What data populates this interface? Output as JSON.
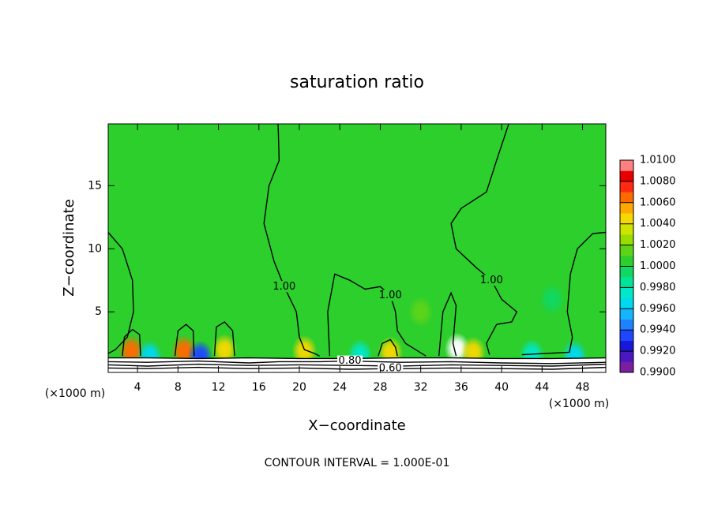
{
  "chart_data": {
    "type": "contour",
    "title": "saturation ratio",
    "x_label": "X−coordinate",
    "y_label": "Z−coordinate",
    "x_unit_label": "(×1000 m)",
    "footer": "CONTOUR INTERVAL = 1.000E-01",
    "xlim": [
      1.1,
      50.3
    ],
    "ylim": [
      0.2,
      19.9
    ],
    "xticks": [
      4,
      8,
      12,
      16,
      20,
      24,
      28,
      32,
      36,
      40,
      44,
      48
    ],
    "yticks": [
      5,
      10,
      15
    ],
    "background_value": 1.0004,
    "colorbar": {
      "range": [
        0.99,
        1.01
      ],
      "colors": [
        "#7b1fa2",
        "#4a18c0",
        "#1818d8",
        "#1e46ff",
        "#1e82ff",
        "#14b4ff",
        "#00d8f0",
        "#00e8c8",
        "#00e49a",
        "#10d860",
        "#2ccf2c",
        "#5cd41a",
        "#98dc00",
        "#cce400",
        "#f4d800",
        "#ffa800",
        "#ff6a00",
        "#ff2a10",
        "#e80000",
        "#ff8080"
      ],
      "ticks": [
        {
          "value": 0.99,
          "label": "0.9900"
        },
        {
          "value": 0.992,
          "label": "0.9920"
        },
        {
          "value": 0.994,
          "label": "0.9940"
        },
        {
          "value": 0.996,
          "label": "0.9960"
        },
        {
          "value": 0.998,
          "label": "0.9980"
        },
        {
          "value": 1.0,
          "label": "1.0000"
        },
        {
          "value": 1.002,
          "label": "1.0020"
        },
        {
          "value": 1.004,
          "label": "1.0040"
        },
        {
          "value": 1.006,
          "label": "1.0060"
        },
        {
          "value": 1.008,
          "label": "1.0080"
        },
        {
          "value": 1.01,
          "label": "1.0100"
        }
      ]
    },
    "features": [
      {
        "x": 2.3,
        "y": 6,
        "value": 1.001
      },
      {
        "x": 32,
        "y": 5,
        "value": 1.0015
      },
      {
        "x": 45,
        "y": 6,
        "value": 0.999
      },
      {
        "x": 3.4,
        "y": 1.9,
        "value": 1.006
      },
      {
        "x": 8.6,
        "y": 1.9,
        "value": 1.006
      },
      {
        "x": 12.6,
        "y": 2,
        "value": 1.005
      },
      {
        "x": 20.5,
        "y": 1.9,
        "value": 1.004
      },
      {
        "x": 29,
        "y": 1.8,
        "value": 1.004
      },
      {
        "x": 35.6,
        "y": 2.1,
        "value": 1.012
      },
      {
        "x": 37.2,
        "y": 1.8,
        "value": 1.004
      },
      {
        "x": 5.2,
        "y": 1.5,
        "value": 0.996
      },
      {
        "x": 10.2,
        "y": 1.5,
        "value": 0.993
      },
      {
        "x": 26,
        "y": 1.6,
        "value": 0.997
      },
      {
        "x": 43,
        "y": 1.6,
        "value": 0.997
      },
      {
        "x": 47.2,
        "y": 1.5,
        "value": 0.996
      }
    ],
    "contours": [
      {
        "level": 1.0,
        "x": [
          1.1,
          2.5,
          3.5,
          3.6,
          3,
          1.8,
          1.1
        ],
        "y": [
          11.3,
          10,
          7.5,
          5,
          3,
          2,
          1.7
        ]
      },
      {
        "level": 1.0,
        "x": [
          2.5,
          2.7,
          3.5,
          4.2,
          4.3
        ],
        "y": [
          1.5,
          3,
          3.6,
          3.2,
          1.5
        ]
      },
      {
        "level": 1.0,
        "x": [
          7.7,
          8,
          8.8,
          9.5,
          9.6
        ],
        "y": [
          1.5,
          3.5,
          4,
          3.5,
          1.5
        ]
      },
      {
        "level": 1.0,
        "x": [
          11.6,
          11.8,
          12.6,
          13.4,
          13.6
        ],
        "y": [
          1.5,
          3.8,
          4.2,
          3.5,
          1.5
        ]
      },
      {
        "level": 1.0,
        "label": "1.00",
        "x": [
          17.9,
          18,
          17,
          16.5,
          17.5,
          18.5,
          19.7,
          20,
          20.5,
          21.5,
          22
        ],
        "y": [
          19.9,
          17,
          15,
          12,
          9,
          7,
          5,
          3,
          2,
          1.7,
          1.5
        ]
      },
      {
        "level": 1.0,
        "label": "1.00",
        "x": [
          23,
          22.8,
          23.5,
          25,
          26.5,
          28,
          29,
          29.5,
          29.7,
          30.5,
          31.5,
          32.5
        ],
        "y": [
          1.5,
          5,
          8,
          7.5,
          6.8,
          7,
          6.3,
          5,
          3.5,
          2.5,
          2,
          1.5
        ]
      },
      {
        "level": 1.0,
        "x": [
          27.8,
          28.2,
          29,
          29.5,
          29.7
        ],
        "y": [
          1.5,
          2.5,
          2.8,
          2.2,
          1.5
        ]
      },
      {
        "level": 1.0,
        "x": [
          33.8,
          34.2,
          35,
          35.5,
          35.2,
          35.5
        ],
        "y": [
          1.5,
          5,
          6.5,
          5.5,
          2.5,
          1.5
        ]
      },
      {
        "level": 1.0,
        "label": "1.00",
        "x": [
          40.7,
          39.5,
          38.5,
          36,
          35,
          35.5,
          37.5,
          39,
          40,
          41.5,
          41,
          39.5,
          38.5,
          38.8
        ],
        "y": [
          19.9,
          17,
          14.5,
          13.2,
          12,
          10,
          8.5,
          7.5,
          6,
          5,
          4.2,
          4,
          2.5,
          1.6
        ]
      },
      {
        "level": 1.0,
        "x": [
          42,
          46.7,
          47,
          46.5,
          46.8,
          47.5,
          49,
          50.3
        ],
        "y": [
          1.6,
          1.8,
          3,
          5,
          8,
          10,
          11.2,
          11.3
        ]
      },
      {
        "level": 0.9,
        "x": [
          1.1,
          5,
          10,
          15,
          20,
          25,
          30,
          35,
          40,
          45,
          50.3
        ],
        "y": [
          1.35,
          1.35,
          1.3,
          1.35,
          1.3,
          1.3,
          1.35,
          1.35,
          1.3,
          1.3,
          1.35
        ]
      },
      {
        "level": 0.8,
        "label": "0.80",
        "x": [
          1.1,
          5,
          10,
          15,
          18,
          22,
          25,
          30,
          35,
          40,
          45,
          50.3
        ],
        "y": [
          1.05,
          1,
          1.1,
          0.95,
          1.05,
          1.05,
          1.1,
          1,
          1.05,
          0.95,
          0.9,
          1
        ]
      },
      {
        "level": 0.7,
        "x": [
          1.1,
          5,
          10,
          15,
          20,
          25,
          30,
          35,
          40,
          45,
          50.3
        ],
        "y": [
          0.8,
          0.7,
          0.85,
          0.75,
          0.8,
          0.75,
          0.7,
          0.8,
          0.75,
          0.7,
          0.85
        ]
      },
      {
        "level": 0.6,
        "label": "0.60",
        "x": [
          1.1,
          5,
          10,
          15,
          20,
          25,
          29,
          31,
          35,
          40,
          45,
          50.3
        ],
        "y": [
          0.55,
          0.5,
          0.6,
          0.5,
          0.55,
          0.45,
          0.5,
          0.5,
          0.55,
          0.5,
          0.45,
          0.6
        ]
      }
    ]
  }
}
